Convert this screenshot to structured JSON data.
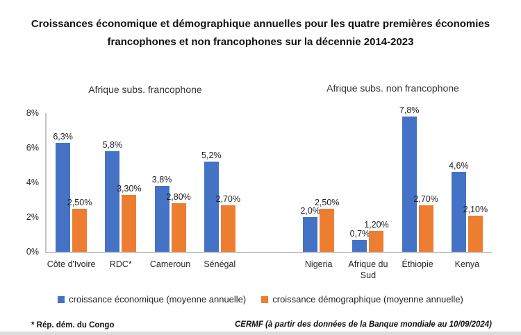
{
  "title": {
    "line1": "Croissances économique et démographique annuelles pour les quatre premières économies",
    "line2": "francophones et non francophones sur la décennie 2014-2023"
  },
  "footnote": "* Rép. dém. du Congo",
  "source": "CERMF (à partir des données de la Banque mondiale au 10/09/2024)",
  "colors": {
    "economic": "#4472C4",
    "demographic": "#ED7D31",
    "axis": "#C6C6C6"
  },
  "legend": [
    {
      "label": "croissance économique (moyenne annuelle)"
    },
    {
      "label": "croissance démographique (moyenne annuelle)"
    }
  ],
  "yticks": {
    "t8": "8%",
    "t6": "6%",
    "t4": "4%",
    "t2": "2%",
    "t0": "0%"
  },
  "chart_data": {
    "type": "bar",
    "title": "Croissances économique et démographique annuelles pour les quatre premières économies francophones et non francophones sur la décennie 2014-2023",
    "ylabel": "",
    "xlabel": "",
    "ylim": [
      0,
      8
    ],
    "ytick_labels": [
      "0%",
      "2%",
      "4%",
      "6%",
      "8%"
    ],
    "grid": false,
    "legend_position": "bottom",
    "series_names": [
      "croissance économique (moyenne annuelle)",
      "croissance démographique (moyenne annuelle)"
    ],
    "groups": [
      {
        "name": "Afrique subs. francophone",
        "categories": [
          {
            "label": "Côte d'Ivoire",
            "eco": 6.3,
            "eco_label": "6,3%",
            "demo": 2.5,
            "demo_label": "2,50%"
          },
          {
            "label": "RDC*",
            "eco": 5.8,
            "eco_label": "5,8%",
            "demo": 3.3,
            "demo_label": "3,30%"
          },
          {
            "label": "Cameroun",
            "eco": 3.8,
            "eco_label": "3,8%",
            "demo": 2.8,
            "demo_label": "2,80%"
          },
          {
            "label": "Sénégal",
            "eco": 5.2,
            "eco_label": "5,2%",
            "demo": 2.7,
            "demo_label": "2,70%"
          }
        ]
      },
      {
        "name": "Afrique subs. non francophone",
        "categories": [
          {
            "label": "Nigeria",
            "eco": 2.0,
            "eco_label": "2,0%",
            "demo": 2.5,
            "demo_label": "2,50%"
          },
          {
            "label": "Afrique du Sud",
            "eco": 0.7,
            "eco_label": "0,7%",
            "demo": 1.2,
            "demo_label": "1,20%"
          },
          {
            "label": "Éthiopie",
            "eco": 7.8,
            "eco_label": "7,8%",
            "demo": 2.7,
            "demo_label": "2,70%"
          },
          {
            "label": "Kenya",
            "eco": 4.6,
            "eco_label": "4,6%",
            "demo": 2.1,
            "demo_label": "2,10%"
          }
        ]
      }
    ]
  }
}
